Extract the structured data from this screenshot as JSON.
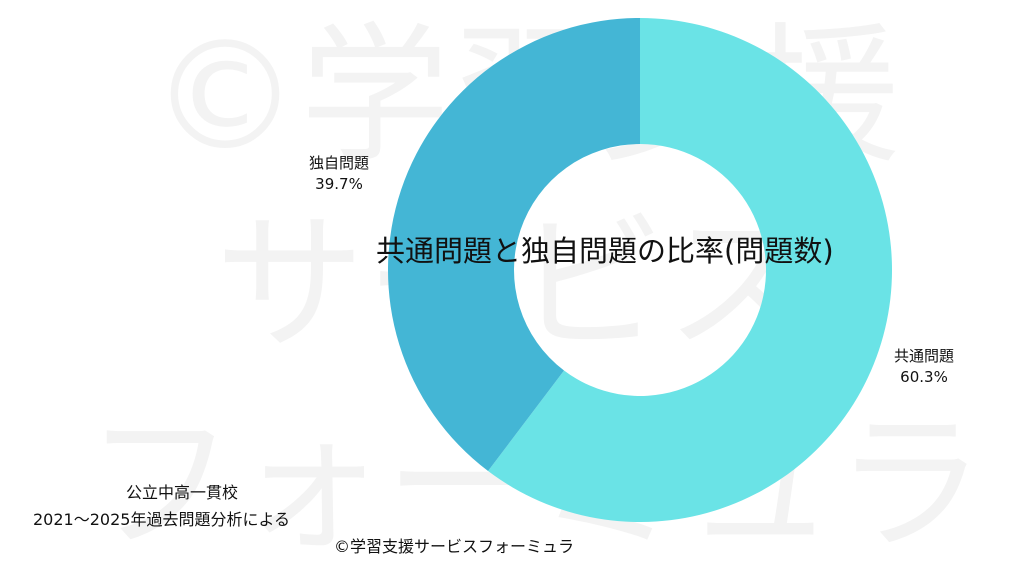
{
  "watermark": {
    "line1": "©学習支援",
    "line2": "サービス",
    "line3": "フォーミュラ",
    "color": "#f3f3f3"
  },
  "chart_data": {
    "type": "pie",
    "style": "donut",
    "title": "共通問題と独自問題の比率(問題数)",
    "slices": [
      {
        "label": "共通問題",
        "value": 60.3,
        "value_label": "60.3%",
        "color": "#6ae3e6"
      },
      {
        "label": "独自問題",
        "value": 39.7,
        "value_label": "39.7%",
        "color": "#44b6d5"
      }
    ],
    "start_angle_deg": 0,
    "direction": "clockwise"
  },
  "notes": {
    "line1": "公立中高一貫校",
    "line2": "2021〜2025年過去問題分析による"
  },
  "credit": "©学習支援サービスフォーミュラ"
}
